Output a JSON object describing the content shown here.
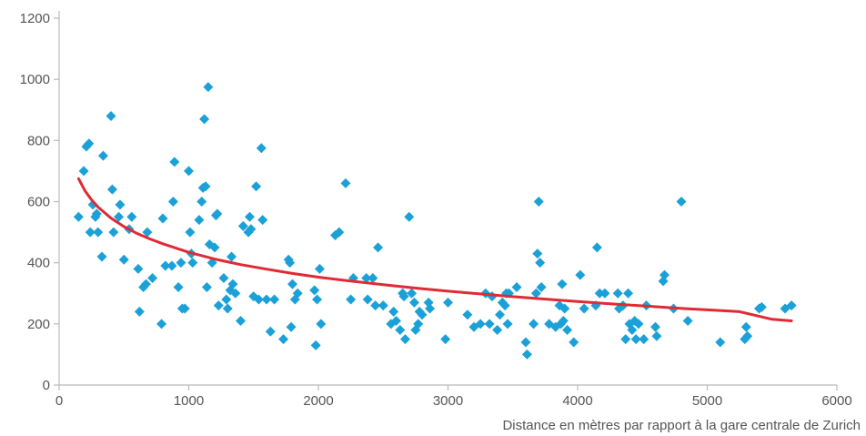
{
  "chart_data": {
    "type": "scatter",
    "title": "",
    "xlabel": "Distance en mètres par rapport à la gare centrale de Zurich",
    "ylabel": "",
    "xlim": [
      0,
      6000
    ],
    "ylim": [
      0,
      1200
    ],
    "x_ticks": [
      0,
      1000,
      2000,
      3000,
      4000,
      5000,
      6000
    ],
    "y_ticks": [
      0,
      200,
      400,
      600,
      800,
      1000,
      1200
    ],
    "x_tick_labels": [
      "0",
      "1000",
      "2000",
      "3000",
      "4000",
      "5000",
      "6000"
    ],
    "y_tick_labels": [
      "0",
      "200",
      "400",
      "600",
      "800",
      "1000",
      "1200"
    ],
    "grid": false,
    "colors": {
      "points": "#1ba1d8",
      "trend": "#e02a35",
      "axis": "#bbbbbb",
      "text": "#555555"
    },
    "series": [
      {
        "marker": "diamond",
        "points": [
          [
            150,
            550
          ],
          [
            190,
            700
          ],
          [
            210,
            780
          ],
          [
            230,
            790
          ],
          [
            240,
            500
          ],
          [
            260,
            590
          ],
          [
            280,
            550
          ],
          [
            290,
            560
          ],
          [
            300,
            500
          ],
          [
            330,
            420
          ],
          [
            340,
            750
          ],
          [
            400,
            880
          ],
          [
            410,
            640
          ],
          [
            420,
            500
          ],
          [
            460,
            550
          ],
          [
            470,
            590
          ],
          [
            500,
            410
          ],
          [
            540,
            510
          ],
          [
            560,
            550
          ],
          [
            610,
            380
          ],
          [
            620,
            240
          ],
          [
            650,
            320
          ],
          [
            670,
            330
          ],
          [
            680,
            500
          ],
          [
            720,
            350
          ],
          [
            790,
            200
          ],
          [
            800,
            545
          ],
          [
            820,
            390
          ],
          [
            870,
            390
          ],
          [
            880,
            600
          ],
          [
            890,
            730
          ],
          [
            920,
            320
          ],
          [
            940,
            400
          ],
          [
            950,
            250
          ],
          [
            970,
            250
          ],
          [
            1000,
            700
          ],
          [
            1010,
            500
          ],
          [
            1020,
            430
          ],
          [
            1030,
            400
          ],
          [
            1080,
            540
          ],
          [
            1100,
            600
          ],
          [
            1110,
            645
          ],
          [
            1120,
            870
          ],
          [
            1130,
            650
          ],
          [
            1140,
            320
          ],
          [
            1150,
            975
          ],
          [
            1160,
            460
          ],
          [
            1180,
            400
          ],
          [
            1200,
            450
          ],
          [
            1210,
            555
          ],
          [
            1220,
            560
          ],
          [
            1230,
            260
          ],
          [
            1270,
            350
          ],
          [
            1290,
            280
          ],
          [
            1300,
            250
          ],
          [
            1320,
            310
          ],
          [
            1330,
            420
          ],
          [
            1340,
            330
          ],
          [
            1360,
            300
          ],
          [
            1400,
            210
          ],
          [
            1420,
            520
          ],
          [
            1460,
            500
          ],
          [
            1470,
            550
          ],
          [
            1480,
            510
          ],
          [
            1500,
            290
          ],
          [
            1520,
            650
          ],
          [
            1540,
            280
          ],
          [
            1560,
            775
          ],
          [
            1570,
            540
          ],
          [
            1600,
            280
          ],
          [
            1630,
            175
          ],
          [
            1660,
            280
          ],
          [
            1730,
            150
          ],
          [
            1770,
            410
          ],
          [
            1780,
            400
          ],
          [
            1790,
            190
          ],
          [
            1800,
            330
          ],
          [
            1820,
            280
          ],
          [
            1840,
            300
          ],
          [
            1970,
            310
          ],
          [
            1980,
            130
          ],
          [
            1990,
            280
          ],
          [
            2010,
            380
          ],
          [
            2020,
            200
          ],
          [
            2130,
            490
          ],
          [
            2160,
            500
          ],
          [
            2210,
            660
          ],
          [
            2250,
            280
          ],
          [
            2270,
            350
          ],
          [
            2370,
            350
          ],
          [
            2380,
            280
          ],
          [
            2420,
            350
          ],
          [
            2440,
            260
          ],
          [
            2460,
            450
          ],
          [
            2500,
            260
          ],
          [
            2560,
            200
          ],
          [
            2580,
            240
          ],
          [
            2600,
            210
          ],
          [
            2630,
            180
          ],
          [
            2650,
            300
          ],
          [
            2660,
            290
          ],
          [
            2670,
            150
          ],
          [
            2700,
            550
          ],
          [
            2720,
            300
          ],
          [
            2740,
            270
          ],
          [
            2750,
            180
          ],
          [
            2770,
            200
          ],
          [
            2780,
            240
          ],
          [
            2800,
            230
          ],
          [
            2850,
            270
          ],
          [
            2860,
            250
          ],
          [
            2980,
            150
          ],
          [
            3000,
            270
          ],
          [
            3150,
            230
          ],
          [
            3200,
            190
          ],
          [
            3250,
            200
          ],
          [
            3290,
            300
          ],
          [
            3320,
            200
          ],
          [
            3340,
            290
          ],
          [
            3380,
            180
          ],
          [
            3400,
            230
          ],
          [
            3420,
            270
          ],
          [
            3440,
            260
          ],
          [
            3450,
            300
          ],
          [
            3460,
            200
          ],
          [
            3470,
            300
          ],
          [
            3530,
            320
          ],
          [
            3600,
            140
          ],
          [
            3610,
            100
          ],
          [
            3660,
            200
          ],
          [
            3680,
            300
          ],
          [
            3690,
            430
          ],
          [
            3700,
            600
          ],
          [
            3710,
            400
          ],
          [
            3720,
            320
          ],
          [
            3780,
            200
          ],
          [
            3830,
            190
          ],
          [
            3860,
            260
          ],
          [
            3870,
            200
          ],
          [
            3880,
            330
          ],
          [
            3890,
            210
          ],
          [
            3900,
            250
          ],
          [
            3920,
            180
          ],
          [
            3970,
            140
          ],
          [
            4020,
            360
          ],
          [
            4050,
            250
          ],
          [
            4140,
            260
          ],
          [
            4150,
            450
          ],
          [
            4170,
            300
          ],
          [
            4210,
            300
          ],
          [
            4310,
            300
          ],
          [
            4320,
            250
          ],
          [
            4350,
            260
          ],
          [
            4370,
            150
          ],
          [
            4390,
            300
          ],
          [
            4400,
            200
          ],
          [
            4420,
            180
          ],
          [
            4440,
            210
          ],
          [
            4450,
            150
          ],
          [
            4470,
            200
          ],
          [
            4510,
            150
          ],
          [
            4530,
            260
          ],
          [
            4600,
            190
          ],
          [
            4610,
            160
          ],
          [
            4660,
            340
          ],
          [
            4670,
            360
          ],
          [
            4740,
            250
          ],
          [
            4800,
            600
          ],
          [
            4850,
            210
          ],
          [
            5100,
            140
          ],
          [
            5290,
            150
          ],
          [
            5300,
            190
          ],
          [
            5310,
            160
          ],
          [
            5400,
            250
          ],
          [
            5420,
            255
          ],
          [
            5600,
            250
          ],
          [
            5650,
            260
          ]
        ]
      },
      {
        "type": "line",
        "marker": "none",
        "points": [
          [
            150,
            675
          ],
          [
            200,
            635
          ],
          [
            250,
            606
          ],
          [
            300,
            582
          ],
          [
            400,
            546
          ],
          [
            500,
            518
          ],
          [
            600,
            496
          ],
          [
            700,
            478
          ],
          [
            800,
            462
          ],
          [
            1000,
            434
          ],
          [
            1200,
            412
          ],
          [
            1400,
            394
          ],
          [
            1600,
            379
          ],
          [
            1800,
            365
          ],
          [
            2000,
            353
          ],
          [
            2250,
            340
          ],
          [
            2500,
            328
          ],
          [
            2750,
            317
          ],
          [
            3000,
            307
          ],
          [
            3250,
            298
          ],
          [
            3500,
            289
          ],
          [
            3750,
            281
          ],
          [
            4000,
            273
          ],
          [
            4250,
            266
          ],
          [
            4500,
            259
          ],
          [
            4750,
            252
          ],
          [
            5000,
            246
          ],
          [
            5250,
            240
          ],
          [
            5500,
            215
          ],
          [
            5650,
            210
          ]
        ]
      }
    ]
  }
}
